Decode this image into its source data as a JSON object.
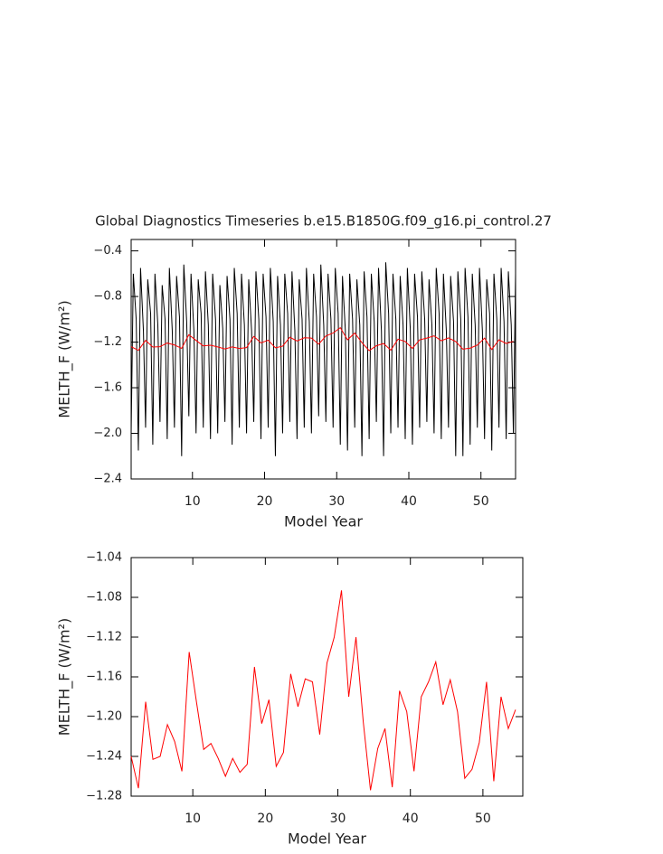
{
  "chart_data": [
    {
      "type": "line",
      "title": "Global Diagnostics Timeseries b.e15.B1850G.f09_g16.pi_control.27",
      "xlabel": "Model Year",
      "ylabel": "MELTH_F (W/m²)",
      "xlim": [
        1.5,
        54.8
      ],
      "ylim": [
        -2.4,
        -0.3
      ],
      "xticks": [
        10,
        20,
        30,
        40,
        50
      ],
      "yticks": [
        {
          "value": -2.4,
          "label": "−2.4"
        },
        {
          "value": -2.0,
          "label": "−2.0"
        },
        {
          "value": -1.6,
          "label": "−1.6"
        },
        {
          "value": -1.2,
          "label": "−1.2"
        },
        {
          "value": -0.8,
          "label": "−0.8"
        },
        {
          "value": -0.4,
          "label": "−0.4"
        }
      ],
      "series": [
        {
          "color": "#000000",
          "x": [
            1.5,
            1.8,
            2.2,
            2.5,
            2.8,
            3.2,
            3.5,
            3.8,
            4.2,
            4.5,
            4.8,
            5.2,
            5.5,
            5.8,
            6.2,
            6.5,
            6.8,
            7.2,
            7.5,
            7.8,
            8.2,
            8.5,
            8.8,
            9.2,
            9.5,
            9.8,
            10.2,
            10.5,
            10.8,
            11.2,
            11.5,
            11.8,
            12.2,
            12.5,
            12.8,
            13.2,
            13.5,
            13.8,
            14.2,
            14.5,
            14.8,
            15.2,
            15.5,
            15.8,
            16.2,
            16.5,
            16.8,
            17.2,
            17.5,
            17.8,
            18.2,
            18.5,
            18.8,
            19.2,
            19.5,
            19.8,
            20.2,
            20.5,
            20.8,
            21.2,
            21.5,
            21.8,
            22.2,
            22.5,
            22.8,
            23.2,
            23.5,
            23.8,
            24.2,
            24.5,
            24.8,
            25.2,
            25.5,
            25.8,
            26.2,
            26.5,
            26.8,
            27.2,
            27.5,
            27.8,
            28.2,
            28.5,
            28.8,
            29.2,
            29.5,
            29.8,
            30.2,
            30.5,
            30.8,
            31.2,
            31.5,
            31.8,
            32.2,
            32.5,
            32.8,
            33.2,
            33.5,
            33.8,
            34.2,
            34.5,
            34.8,
            35.2,
            35.5,
            35.8,
            36.2,
            36.5,
            36.8,
            37.2,
            37.5,
            37.8,
            38.2,
            38.5,
            38.8,
            39.2,
            39.5,
            39.8,
            40.2,
            40.5,
            40.8,
            41.2,
            41.5,
            41.8,
            42.2,
            42.5,
            42.8,
            43.2,
            43.5,
            43.8,
            44.2,
            44.5,
            44.8,
            45.2,
            45.5,
            45.8,
            46.2,
            46.5,
            46.8,
            47.2,
            47.5,
            47.8,
            48.2,
            48.5,
            48.8,
            49.2,
            49.5,
            49.8,
            50.2,
            50.5,
            50.8,
            51.2,
            51.5,
            51.8,
            52.2,
            52.5,
            52.8,
            53.2,
            53.5,
            53.8,
            54.2,
            54.5,
            54.8
          ],
          "values": [
            -2.0,
            -0.6,
            -1.0,
            -2.15,
            -0.55,
            -1.1,
            -1.95,
            -0.65,
            -0.95,
            -2.1,
            -0.6,
            -1.05,
            -1.9,
            -0.7,
            -1.0,
            -2.05,
            -0.55,
            -1.1,
            -1.95,
            -0.62,
            -0.98,
            -2.2,
            -0.52,
            -1.02,
            -1.85,
            -0.6,
            -1.1,
            -2.0,
            -0.65,
            -0.95,
            -1.95,
            -0.58,
            -1.05,
            -2.05,
            -0.6,
            -1.0,
            -2.0,
            -0.7,
            -1.08,
            -1.9,
            -0.62,
            -1.0,
            -2.1,
            -0.55,
            -0.95,
            -1.95,
            -0.6,
            -1.05,
            -2.0,
            -0.65,
            -1.1,
            -1.9,
            -0.58,
            -1.0,
            -2.05,
            -0.6,
            -0.98,
            -1.95,
            -0.55,
            -1.02,
            -2.2,
            -0.62,
            -1.05,
            -2.0,
            -0.6,
            -0.95,
            -1.9,
            -0.58,
            -1.1,
            -2.05,
            -0.65,
            -1.0,
            -1.95,
            -0.55,
            -1.02,
            -2.0,
            -0.6,
            -0.98,
            -1.85,
            -0.52,
            -1.05,
            -1.9,
            -0.6,
            -1.0,
            -1.95,
            -0.55,
            -0.95,
            -2.1,
            -0.62,
            -1.1,
            -2.15,
            -0.6,
            -1.0,
            -1.95,
            -0.65,
            -1.05,
            -2.2,
            -0.58,
            -0.98,
            -2.05,
            -0.6,
            -1.02,
            -1.9,
            -0.55,
            -1.1,
            -2.2,
            -0.5,
            -0.95,
            -2.0,
            -0.6,
            -1.0,
            -1.95,
            -0.62,
            -1.05,
            -2.05,
            -0.55,
            -1.08,
            -2.1,
            -0.6,
            -0.98,
            -1.95,
            -0.58,
            -1.0,
            -1.9,
            -0.65,
            -1.05,
            -2.0,
            -0.55,
            -0.95,
            -2.05,
            -0.6,
            -1.1,
            -1.95,
            -0.62,
            -1.02,
            -2.2,
            -0.58,
            -1.0,
            -2.2,
            -0.55,
            -0.98,
            -2.1,
            -0.6,
            -1.05,
            -1.95,
            -0.55,
            -1.1,
            -2.05,
            -0.65,
            -0.95,
            -2.15,
            -0.6,
            -1.0,
            -1.95,
            -0.55,
            -1.02,
            -2.05,
            -0.58,
            -1.05,
            -2.0,
            -0.6
          ]
        },
        {
          "color": "#ff0000",
          "x": [
            1.5,
            2.5,
            3.5,
            4.5,
            5.5,
            6.5,
            7.5,
            8.5,
            9.5,
            10.5,
            11.5,
            12.5,
            13.5,
            14.5,
            15.5,
            16.5,
            17.5,
            18.5,
            19.5,
            20.5,
            21.5,
            22.5,
            23.5,
            24.5,
            25.5,
            26.5,
            27.5,
            28.5,
            29.5,
            30.5,
            31.5,
            32.5,
            33.5,
            34.5,
            35.5,
            36.5,
            37.5,
            38.5,
            39.5,
            40.5,
            41.5,
            42.5,
            43.5,
            44.5,
            45.5,
            46.5,
            47.5,
            48.5,
            49.5,
            50.5,
            51.5,
            52.5,
            53.5,
            54.5
          ],
          "values": [
            -1.24,
            -1.272,
            -1.185,
            -1.243,
            -1.24,
            -1.208,
            -1.225,
            -1.255,
            -1.135,
            -1.185,
            -1.233,
            -1.227,
            -1.242,
            -1.26,
            -1.242,
            -1.256,
            -1.248,
            -1.15,
            -1.207,
            -1.183,
            -1.25,
            -1.236,
            -1.157,
            -1.19,
            -1.162,
            -1.165,
            -1.218,
            -1.146,
            -1.12,
            -1.073,
            -1.18,
            -1.12,
            -1.205,
            -1.274,
            -1.232,
            -1.212,
            -1.271,
            -1.174,
            -1.195,
            -1.255,
            -1.18,
            -1.165,
            -1.145,
            -1.188,
            -1.163,
            -1.195,
            -1.262,
            -1.253,
            -1.226,
            -1.165,
            -1.265,
            -1.18,
            -1.212,
            -1.193
          ]
        }
      ]
    },
    {
      "type": "line",
      "xlabel": "Model Year",
      "ylabel": "MELTH_F (W/m²)",
      "xlim": [
        1.5,
        55.5
      ],
      "ylim": [
        -1.28,
        -1.04
      ],
      "xticks": [
        10,
        20,
        30,
        40,
        50
      ],
      "yticks": [
        {
          "value": -1.28,
          "label": "−1.28"
        },
        {
          "value": -1.24,
          "label": "−1.24"
        },
        {
          "value": -1.2,
          "label": "−1.20"
        },
        {
          "value": -1.16,
          "label": "−1.16"
        },
        {
          "value": -1.12,
          "label": "−1.12"
        },
        {
          "value": -1.08,
          "label": "−1.08"
        },
        {
          "value": -1.04,
          "label": "−1.04"
        }
      ],
      "color": "#ff0000",
      "x": [
        1.5,
        2.5,
        3.5,
        4.5,
        5.5,
        6.5,
        7.5,
        8.5,
        9.5,
        10.5,
        11.5,
        12.5,
        13.5,
        14.5,
        15.5,
        16.5,
        17.5,
        18.5,
        19.5,
        20.5,
        21.5,
        22.5,
        23.5,
        24.5,
        25.5,
        26.5,
        27.5,
        28.5,
        29.5,
        30.5,
        31.5,
        32.5,
        33.5,
        34.5,
        35.5,
        36.5,
        37.5,
        38.5,
        39.5,
        40.5,
        41.5,
        42.5,
        43.5,
        44.5,
        45.5,
        46.5,
        47.5,
        48.5,
        49.5,
        50.5,
        51.5,
        52.5,
        53.5,
        54.5
      ],
      "values": [
        -1.24,
        -1.272,
        -1.185,
        -1.243,
        -1.24,
        -1.208,
        -1.225,
        -1.255,
        -1.135,
        -1.185,
        -1.233,
        -1.227,
        -1.242,
        -1.26,
        -1.242,
        -1.256,
        -1.248,
        -1.15,
        -1.207,
        -1.183,
        -1.25,
        -1.236,
        -1.157,
        -1.19,
        -1.162,
        -1.165,
        -1.218,
        -1.146,
        -1.12,
        -1.073,
        -1.18,
        -1.12,
        -1.205,
        -1.274,
        -1.232,
        -1.212,
        -1.271,
        -1.174,
        -1.195,
        -1.255,
        -1.18,
        -1.165,
        -1.145,
        -1.188,
        -1.163,
        -1.195,
        -1.262,
        -1.253,
        -1.226,
        -1.165,
        -1.265,
        -1.18,
        -1.212,
        -1.193
      ]
    }
  ]
}
